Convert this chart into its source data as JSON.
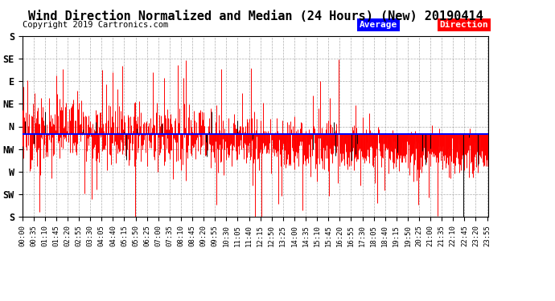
{
  "title": "Wind Direction Normalized and Median (24 Hours) (New) 20190414",
  "copyright": "Copyright 2019 Cartronics.com",
  "ytick_labels": [
    "S",
    "SE",
    "E",
    "NE",
    "N",
    "NW",
    "W",
    "SW",
    "S"
  ],
  "ytick_values": [
    0,
    45,
    90,
    135,
    180,
    225,
    270,
    315,
    360
  ],
  "ylim": [
    0,
    360
  ],
  "avg_line_y": 195,
  "background_color": "#ffffff",
  "grid_color": "#999999",
  "data_color_red": "#ff0000",
  "data_color_black": "#000000",
  "line_color_blue": "#0000ff",
  "legend_avg_bg": "#0000ff",
  "legend_dir_bg": "#ff0000",
  "legend_text_color": "#ffffff",
  "title_fontsize": 11,
  "copyright_fontsize": 7.5,
  "tick_fontsize": 6.5,
  "ytick_fontsize": 8.5,
  "n_points": 1440,
  "xtick_step": 35
}
